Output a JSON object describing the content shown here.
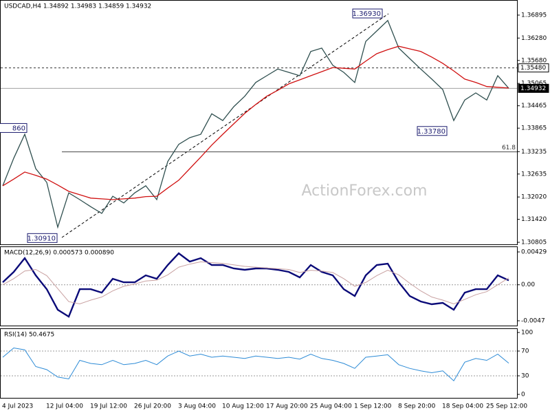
{
  "chart_data": [
    {
      "type": "line",
      "title": "USDCAD,H4  1.34892 1.34983 1.34859 1.34932",
      "watermark": "ActionForex.com",
      "ylim": [
        1.3075,
        1.373
      ],
      "yticks": [
        1.36895,
        {
          "value": 1.3628,
          "label": "1.36280"
        },
        {
          "value": 1.3568,
          "label": "1.35680"
        },
        1.35065,
        1.34465,
        1.33865,
        1.33235,
        1.32635,
        {
          "value": 1.3202,
          "label": "1.32020"
        },
        {
          "value": 1.3142,
          "label": "1.31420"
        },
        1.30805
      ],
      "series": [
        {
          "color": "#2f4f4f",
          "values": [
            1.3232,
            1.3306,
            1.337,
            1.3278,
            1.3241,
            1.3121,
            1.3213,
            1.3195,
            1.3176,
            1.3158,
            1.3204,
            1.3186,
            1.3213,
            1.3232,
            1.3195,
            1.3297,
            1.3343,
            1.3361,
            1.337,
            1.3425,
            1.3407,
            1.3444,
            1.3472,
            1.3509,
            1.3527,
            1.3545,
            1.3536,
            1.3527,
            1.3592,
            1.3601,
            1.3555,
            1.3536,
            1.3509,
            1.3619,
            1.3647,
            1.3675,
            1.3601,
            1.3573,
            1.3545,
            1.3518,
            1.349,
            1.3407,
            1.3462,
            1.3481,
            1.3462,
            1.3527,
            1.34932
          ]
        },
        {
          "color": "#d01010",
          "values": [
            1.3232,
            1.325,
            1.3269,
            1.326,
            1.325,
            1.3234,
            1.3217,
            1.3208,
            1.3199,
            1.3197,
            1.3195,
            1.3197,
            1.3199,
            1.3203,
            1.3204,
            1.3226,
            1.3247,
            1.3278,
            1.3309,
            1.3341,
            1.337,
            1.3398,
            1.3426,
            1.345,
            1.3472,
            1.3488,
            1.3505,
            1.3516,
            1.3527,
            1.3538,
            1.3549,
            1.3547,
            1.3545,
            1.3566,
            1.3586,
            1.3597,
            1.3606,
            1.3599,
            1.3592,
            1.3577,
            1.356,
            1.354,
            1.3518,
            1.3509,
            1.3498,
            1.3496,
            1.3494
          ]
        }
      ],
      "annotations": [
        {
          "value": 1.3693,
          "label": "1.36930"
        },
        {
          "value": 1.3378,
          "label": "1.33780"
        },
        {
          "value": 1.3091,
          "label": "1.30910"
        },
        {
          "value": 1.3386,
          "label": "860"
        }
      ],
      "hlines": [
        {
          "value": 1.3548,
          "label": "1.35480",
          "style": "dashed"
        },
        {
          "value": 1.34932,
          "label": "1.34932",
          "style": "current"
        },
        {
          "value": 1.3323,
          "label": "61.8",
          "style": "fib"
        }
      ],
      "xtick_labels": [
        "4 Jul 2023",
        "12 Jul 04:00",
        "19 Jul 12:00",
        "26 Jul 20:00",
        "3 Aug 04:00",
        "10 Aug 12:00",
        "17 Aug 20:00",
        "25 Aug 04:00",
        "1 Sep 12:00",
        "8 Sep 20:00",
        "18 Sep 04:00",
        "25 Sep 12:00"
      ]
    },
    {
      "type": "line",
      "title": "MACD(12,26,9) 0.000573 0.000890",
      "ylim": [
        -0.00533,
        0.00501
      ],
      "yticks": [
        0.00429,
        {
          "value": 0,
          "label": "0.00"
        },
        -0.0047
      ],
      "ref_lines": [
        0
      ],
      "series": [
        {
          "color": "#0a0a78",
          "width": 2.4,
          "values": [
            0.00033,
            0.00168,
            0.00348,
            0.00123,
            -0.00057,
            -0.00326,
            -0.00416,
            -0.00057,
            -0.00057,
            -0.00102,
            0.00078,
            0.00033,
            0.00033,
            0.00123,
            0.00078,
            0.00258,
            0.00411,
            0.00303,
            0.00348,
            0.00258,
            0.00258,
            0.00213,
            0.00195,
            0.00213,
            0.00213,
            0.00195,
            0.00168,
            0.00096,
            0.00258,
            0.00168,
            0.00123,
            -0.00057,
            -0.00147,
            0.00123,
            0.00258,
            0.00276,
            0.00033,
            -0.00147,
            -0.00218,
            -0.00254,
            -0.00236,
            -0.00326,
            -0.00102,
            -0.00057,
            -0.00057,
            0.00123,
            0.000573
          ]
        },
        {
          "color": "#c8a0a0",
          "width": 1,
          "values": [
            0,
            0.0008,
            0.0018,
            0.002,
            0.0012,
            -0.0005,
            -0.0022,
            -0.0025,
            -0.002,
            -0.0016,
            -0.0008,
            -0.0002,
            0.0001,
            0.0005,
            0.0006,
            0.0013,
            0.0023,
            0.0027,
            0.003,
            0.0029,
            0.0028,
            0.0026,
            0.0024,
            0.0023,
            0.0022,
            0.0021,
            0.002,
            0.0016,
            0.0019,
            0.0018,
            0.0016,
            0.0008,
            -0.0002,
            0.0003,
            0.0012,
            0.0019,
            0.0013,
            0.0002,
            -0.0008,
            -0.0016,
            -0.002,
            -0.0025,
            -0.0019,
            -0.0013,
            -0.0009,
            0,
            0.00089
          ]
        }
      ]
    },
    {
      "type": "line",
      "title": "RSI(14) 50.4675",
      "ylim": [
        -5.6,
        106.7
      ],
      "yticks": [
        100,
        70,
        30,
        0
      ],
      "ref_lines": [
        70,
        30
      ],
      "series": [
        {
          "color": "#2b8ad6",
          "width": 1,
          "values": [
            60,
            75,
            72,
            45,
            40,
            28,
            25,
            55,
            50,
            48,
            55,
            48,
            50,
            55,
            48,
            62,
            70,
            62,
            65,
            60,
            62,
            60,
            58,
            62,
            60,
            58,
            60,
            57,
            65,
            58,
            55,
            50,
            42,
            60,
            62,
            64,
            48,
            42,
            38,
            35,
            38,
            22,
            52,
            58,
            55,
            65,
            50.4675
          ]
        }
      ]
    }
  ]
}
